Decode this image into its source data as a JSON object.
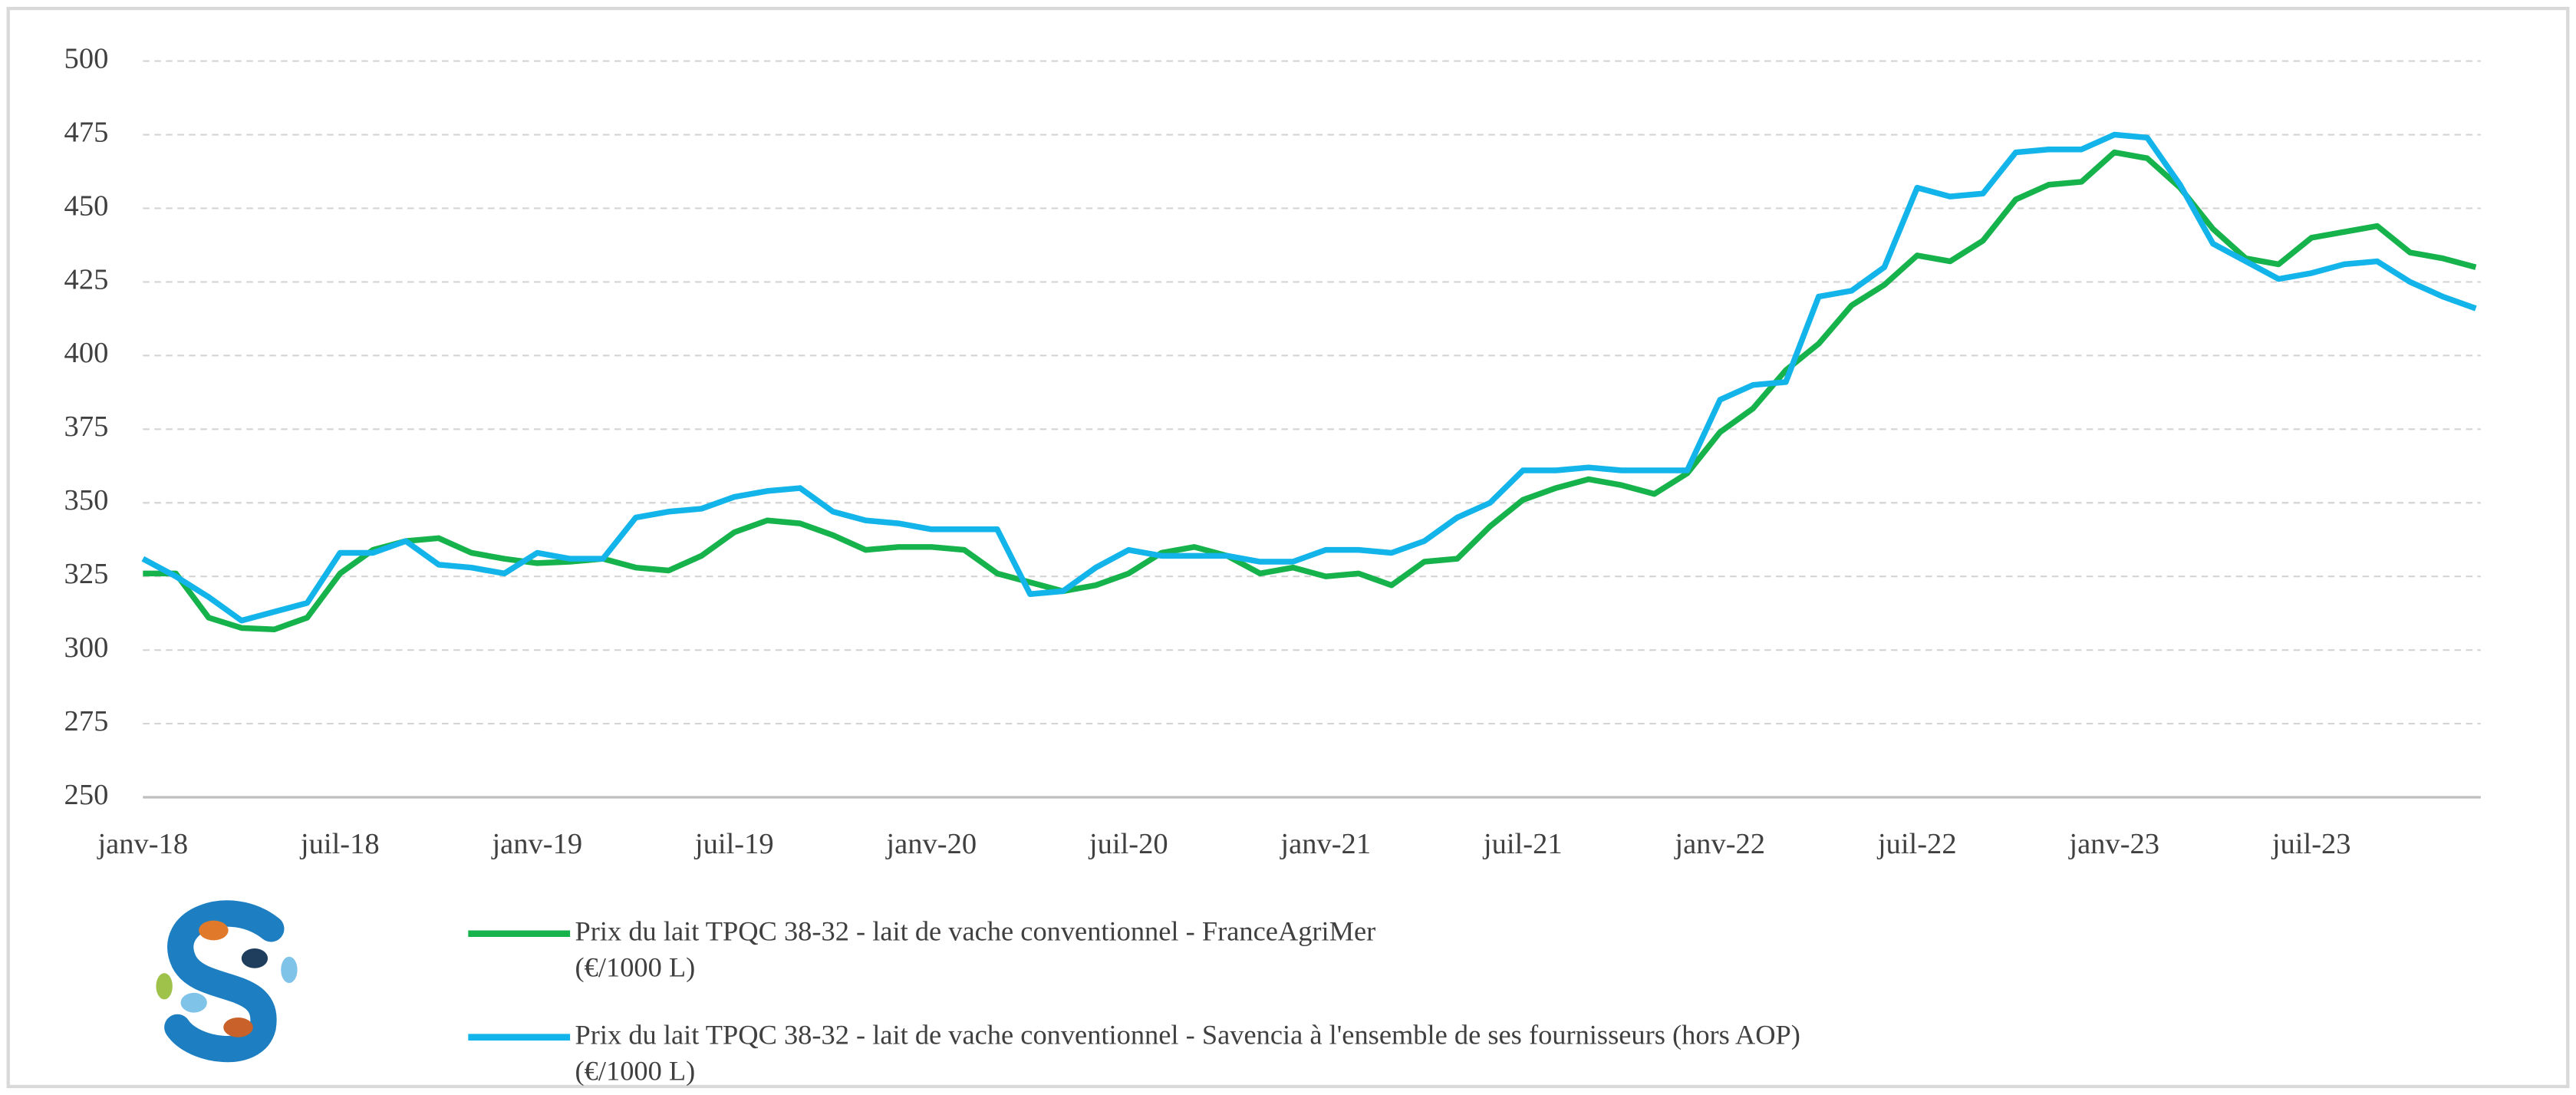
{
  "chart_data": {
    "type": "line",
    "categories": [
      "janv-18",
      null,
      null,
      null,
      null,
      null,
      "juil-18",
      null,
      null,
      null,
      null,
      null,
      "janv-19",
      null,
      null,
      null,
      null,
      null,
      "juil-19",
      null,
      null,
      null,
      null,
      null,
      "janv-20",
      null,
      null,
      null,
      null,
      null,
      "juil-20",
      null,
      null,
      null,
      null,
      null,
      "janv-21",
      null,
      null,
      null,
      null,
      null,
      "juil-21",
      null,
      null,
      null,
      null,
      null,
      "janv-22",
      null,
      null,
      null,
      null,
      null,
      "juil-22",
      null,
      null,
      null,
      null,
      null,
      "janv-23",
      null,
      null,
      null,
      null,
      null,
      "juil-23",
      null,
      null,
      null,
      null,
      null
    ],
    "series": [
      {
        "name": "Prix du lait TPQC 38-32 - lait de vache conventionnel - FranceAgriMer\n(€/1000 L)",
        "color": "#16b24b",
        "values": [
          326,
          326,
          311,
          307.5,
          307,
          311,
          326,
          334,
          337,
          338,
          333,
          331,
          329.5,
          330,
          331,
          328,
          327,
          332,
          340,
          344,
          343,
          339,
          334,
          335,
          335,
          334,
          326,
          323,
          320,
          322,
          326,
          333,
          335,
          332,
          326,
          328,
          325,
          326,
          322,
          330,
          331,
          342,
          351,
          355,
          358,
          356,
          353,
          360,
          374,
          382,
          395,
          404,
          417,
          424,
          434,
          432,
          439,
          453,
          458,
          459,
          469,
          467,
          457,
          443,
          433,
          431,
          440,
          442,
          444,
          435,
          433,
          430
        ]
      },
      {
        "name": "Prix du lait TPQC 38-32 - lait de vache conventionnel - Savencia  à l'ensemble de ses fournisseurs  (hors AOP)\n(€/1000 L)",
        "color": "#12b4ea",
        "values": [
          331,
          325,
          318,
          310,
          313,
          316,
          333,
          333,
          337,
          329,
          328,
          326,
          333,
          331,
          331,
          345,
          347,
          348,
          352,
          354,
          355,
          347,
          344,
          343,
          341,
          341,
          341,
          319,
          320,
          328,
          334,
          332,
          332,
          332,
          330,
          330,
          334,
          334,
          333,
          337,
          345,
          350,
          361,
          361,
          362,
          361,
          361,
          361,
          385,
          390,
          391,
          420,
          422,
          430,
          457,
          454,
          455,
          469,
          470,
          470,
          475,
          474,
          458,
          438,
          432,
          426,
          428,
          431,
          432,
          425,
          420,
          416
        ]
      }
    ],
    "ylim": [
      250,
      500
    ],
    "yticks": [
      250,
      275,
      300,
      325,
      350,
      375,
      400,
      425,
      450,
      475,
      500
    ],
    "grid": true
  }
}
